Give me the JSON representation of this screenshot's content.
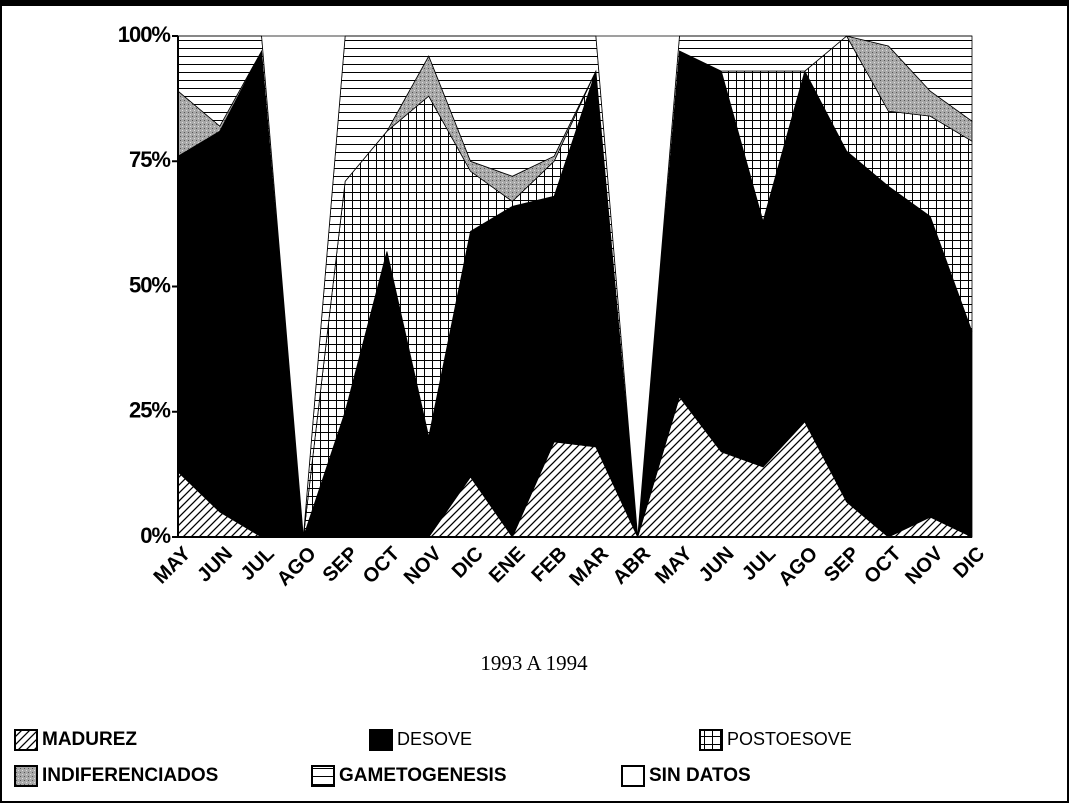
{
  "chart_data": {
    "type": "stacked_area_percent",
    "subtitle": "1993 A 1994",
    "categories": [
      "MAY",
      "JUN",
      "JUL",
      "AGO",
      "SEP",
      "OCT",
      "NOV",
      "DIC",
      "ENE",
      "FEB",
      "MAR",
      "ABR",
      "MAY",
      "JUN",
      "JUL",
      "AGO",
      "SEP",
      "OCT",
      "NOV",
      "DIC"
    ],
    "ylim": [
      0,
      100
    ],
    "yticks": [
      {
        "value": 0,
        "label": "0%"
      },
      {
        "value": 25,
        "label": "25%"
      },
      {
        "value": 50,
        "label": "50%"
      },
      {
        "value": 75,
        "label": "75%"
      },
      {
        "value": 100,
        "label": "100%"
      }
    ],
    "series": [
      {
        "name": "MADUREZ",
        "pattern": "diagonal",
        "values": [
          13,
          5,
          0,
          0,
          0,
          0,
          0,
          12,
          0,
          19,
          18,
          0,
          28,
          17,
          14,
          23,
          7,
          0,
          4,
          0
        ]
      },
      {
        "name": "DESOVE",
        "pattern": "solid",
        "values": [
          63,
          76,
          97,
          0,
          25,
          57,
          20,
          49,
          66,
          49,
          75,
          0,
          69,
          76,
          49,
          70,
          70,
          70,
          60,
          41
        ]
      },
      {
        "name": "POSTOESOVE",
        "pattern": "crosshatch",
        "values": [
          0,
          0,
          0,
          0,
          46,
          24,
          68,
          12,
          1,
          7,
          0,
          0,
          0,
          0,
          30,
          0,
          23,
          15,
          20,
          38
        ]
      },
      {
        "name": "INDIFERENCIADOS",
        "pattern": "gray",
        "values": [
          13,
          1,
          0,
          0,
          0,
          0,
          8,
          2,
          5,
          1,
          0,
          0,
          0,
          0,
          0,
          0,
          0,
          13,
          5,
          4
        ]
      },
      {
        "name": "GAMETOGENESIS",
        "pattern": "horizontal",
        "values": [
          11,
          18,
          3,
          0,
          29,
          19,
          4,
          25,
          28,
          24,
          7,
          0,
          3,
          7,
          7,
          7,
          0,
          2,
          11,
          17
        ]
      },
      {
        "name": "SIN DATOS",
        "pattern": "white",
        "values": [
          0,
          0,
          0,
          100,
          0,
          0,
          0,
          0,
          0,
          0,
          0,
          100,
          0,
          0,
          0,
          0,
          0,
          0,
          0,
          0
        ]
      }
    ]
  }
}
